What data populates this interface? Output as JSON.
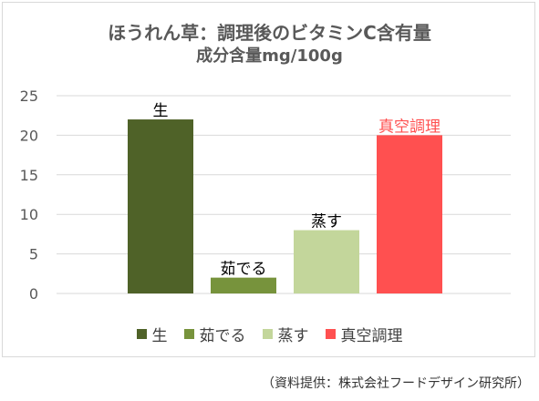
{
  "chart_data": {
    "type": "bar",
    "title": "ほうれん草：調理後のビタミンC含有量",
    "subtitle": "成分含量mg/100g",
    "categories": [
      "生",
      "茹でる",
      "蒸す",
      "真空調理"
    ],
    "values": [
      22,
      2,
      8,
      20
    ],
    "data_labels": [
      "生",
      "茹でる",
      "蒸す",
      "真空調理"
    ],
    "colors": [
      "#4f6228",
      "#77933c",
      "#c3d69b",
      "#ff5050"
    ],
    "data_label_colors": [
      "#000000",
      "#000000",
      "#000000",
      "#ff5050"
    ],
    "ylim": [
      0,
      25
    ],
    "yticks": [
      "0",
      "5",
      "10",
      "15",
      "20",
      "25"
    ],
    "grid": true,
    "legend": "bottom",
    "legend_labels": [
      "生",
      "茹でる",
      "蒸す",
      "真空調理"
    ]
  },
  "source": "（資料提供：株式会社フードデザイン研究所）"
}
